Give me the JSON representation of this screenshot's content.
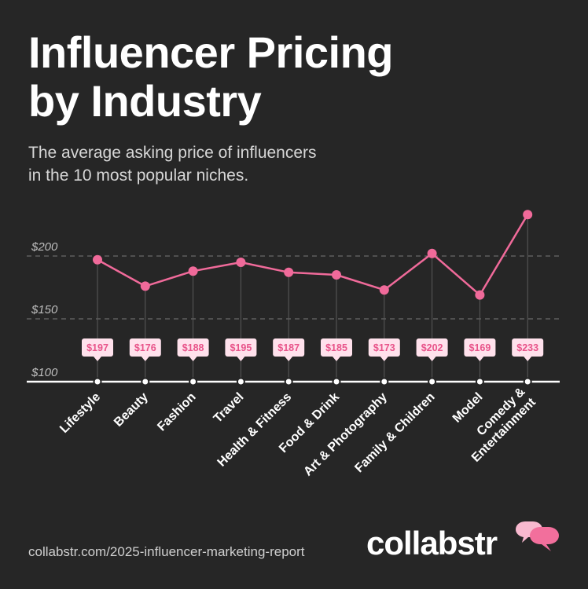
{
  "header": {
    "title_line1": "Influencer Pricing",
    "title_line2": "by Industry",
    "subtitle_line1": "The average asking price of influencers",
    "subtitle_line2": "in the 10 most popular niches."
  },
  "footer": {
    "url": "collabstr.com/2025-influencer-marketing-report",
    "brand": "collabstr",
    "logo_icon": "speech-bubbles-icon"
  },
  "colors": {
    "background": "#262626",
    "line": "#f06a9a",
    "label_bg": "#ffe1ec",
    "label_text": "#e8548a",
    "grid": "#6a6a6a",
    "axis": "#ffffff"
  },
  "chart_data": {
    "type": "line",
    "title": "Influencer Pricing by Industry",
    "subtitle": "The average asking price of influencers in the 10 most popular niches.",
    "categories": [
      [
        "Lifestyle"
      ],
      [
        "Beauty"
      ],
      [
        "Fashion"
      ],
      [
        "Travel"
      ],
      [
        "Health & Fitness"
      ],
      [
        "Food & Drink"
      ],
      [
        "Art & Photography"
      ],
      [
        "Family & Children"
      ],
      [
        "Model"
      ],
      [
        "Comedy &",
        "Entertainment"
      ]
    ],
    "values": [
      197,
      176,
      188,
      195,
      187,
      185,
      173,
      202,
      169,
      233
    ],
    "data_labels": [
      "$197",
      "$176",
      "$188",
      "$195",
      "$187",
      "$185",
      "$173",
      "$202",
      "$169",
      "$233"
    ],
    "y_ticks": [
      100,
      150,
      200
    ],
    "y_tick_labels": [
      "$100",
      "$150",
      "$200"
    ],
    "ylim": [
      100,
      200
    ],
    "xlabel": "",
    "ylabel": "",
    "grid": true,
    "legend": "none"
  }
}
